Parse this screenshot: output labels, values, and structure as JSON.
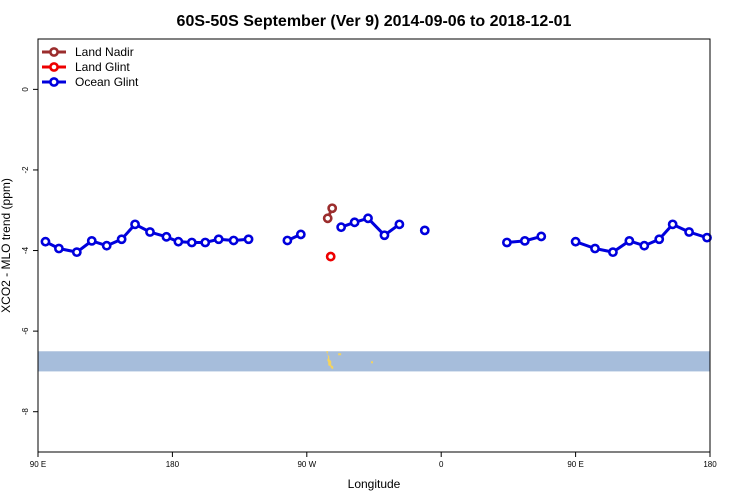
{
  "chart_data": {
    "type": "line",
    "title": "60S-50S September (Ver 9)   2014-09-06 to 2018-12-01",
    "xlabel": "Longitude",
    "ylabel": "XCO2 - MLO trend (ppm)",
    "xlim": [
      90,
      540
    ],
    "ylim": [
      -9.0,
      1.25
    ],
    "x_ticks": [
      {
        "value": 90,
        "label": "90 E"
      },
      {
        "value": 180,
        "label": "180"
      },
      {
        "value": 270,
        "label": "90 W"
      },
      {
        "value": 360,
        "label": "0"
      },
      {
        "value": 450,
        "label": "90 E"
      },
      {
        "value": 540,
        "label": "180"
      }
    ],
    "y_ticks": [
      {
        "value": 0,
        "label": "0"
      },
      {
        "value": -2,
        "label": "-2"
      },
      {
        "value": -4,
        "label": "-4"
      },
      {
        "value": -6,
        "label": "-6"
      },
      {
        "value": -8,
        "label": "-8"
      }
    ],
    "grid": false,
    "legend_position": "top-left",
    "series": [
      {
        "name": "Land Nadir",
        "color": "#9b2d2d",
        "points": [
          [
            284,
            -3.2
          ],
          [
            287,
            -2.95
          ]
        ]
      },
      {
        "name": "Land Glint",
        "color": "#ee0000",
        "points": [
          [
            286,
            -4.15
          ]
        ]
      },
      {
        "name": "Ocean Glint",
        "color": "#0000dd",
        "segments": [
          [
            [
              95,
              -3.78
            ],
            [
              104,
              -3.95
            ],
            [
              116,
              -4.04
            ],
            [
              126,
              -3.76
            ],
            [
              136,
              -3.88
            ],
            [
              146,
              -3.72
            ],
            [
              155,
              -3.35
            ],
            [
              165,
              -3.54
            ],
            [
              176,
              -3.66
            ],
            [
              184,
              -3.78
            ],
            [
              193,
              -3.8
            ],
            [
              202,
              -3.8
            ],
            [
              211,
              -3.72
            ],
            [
              221,
              -3.75
            ],
            [
              231,
              -3.72
            ]
          ],
          [
            [
              257,
              -3.75
            ],
            [
              266,
              -3.6
            ]
          ],
          [
            [
              293,
              -3.42
            ],
            [
              302,
              -3.3
            ],
            [
              311,
              -3.2
            ],
            [
              322,
              -3.62
            ],
            [
              332,
              -3.35
            ]
          ],
          [
            [
              349,
              -3.5
            ]
          ],
          [
            [
              404,
              -3.8
            ],
            [
              416,
              -3.76
            ],
            [
              427,
              -3.65
            ]
          ],
          [
            [
              450,
              -3.78
            ],
            [
              463,
              -3.95
            ],
            [
              475,
              -4.04
            ],
            [
              486,
              -3.76
            ],
            [
              496,
              -3.88
            ],
            [
              506,
              -3.72
            ],
            [
              515,
              -3.35
            ],
            [
              526,
              -3.54
            ],
            [
              538,
              -3.68
            ]
          ]
        ]
      }
    ],
    "map_strip": {
      "lat_range": [
        "60S",
        "50S"
      ],
      "y_range": [
        -7.0,
        -6.5
      ],
      "ocean_color": "#a6bddb",
      "land_color": "#f4d35e"
    }
  }
}
